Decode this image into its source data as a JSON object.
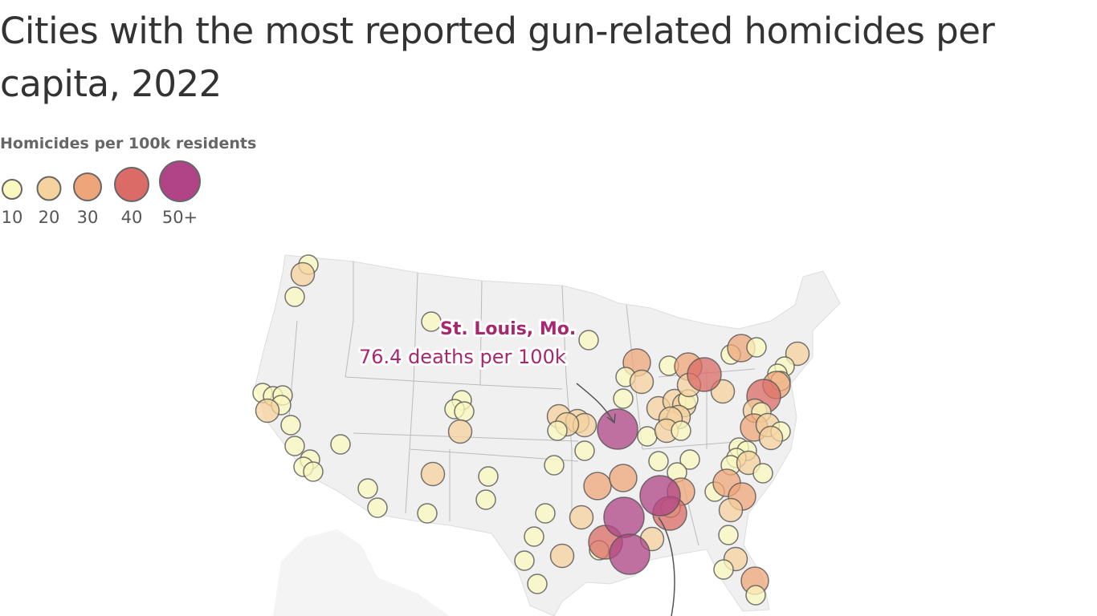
{
  "chart_data": {
    "type": "bubble-map",
    "title": "Cities with the most reported gun-related homicides per capita, 2022",
    "legend": {
      "title": "Homicides per 100k residents",
      "levels": [
        {
          "label": "10",
          "color": "#fbf8bf"
        },
        {
          "label": "20",
          "color": "#f5d29e"
        },
        {
          "label": "30",
          "color": "#efa57a"
        },
        {
          "label": "40",
          "color": "#db6b66"
        },
        {
          "label": "50+",
          "color": "#b04487"
        }
      ]
    },
    "annotation": {
      "city": "St. Louis, Mo.",
      "value_text": "76.4 deaths per 100k"
    },
    "map_background": "#f0f0f0"
  }
}
